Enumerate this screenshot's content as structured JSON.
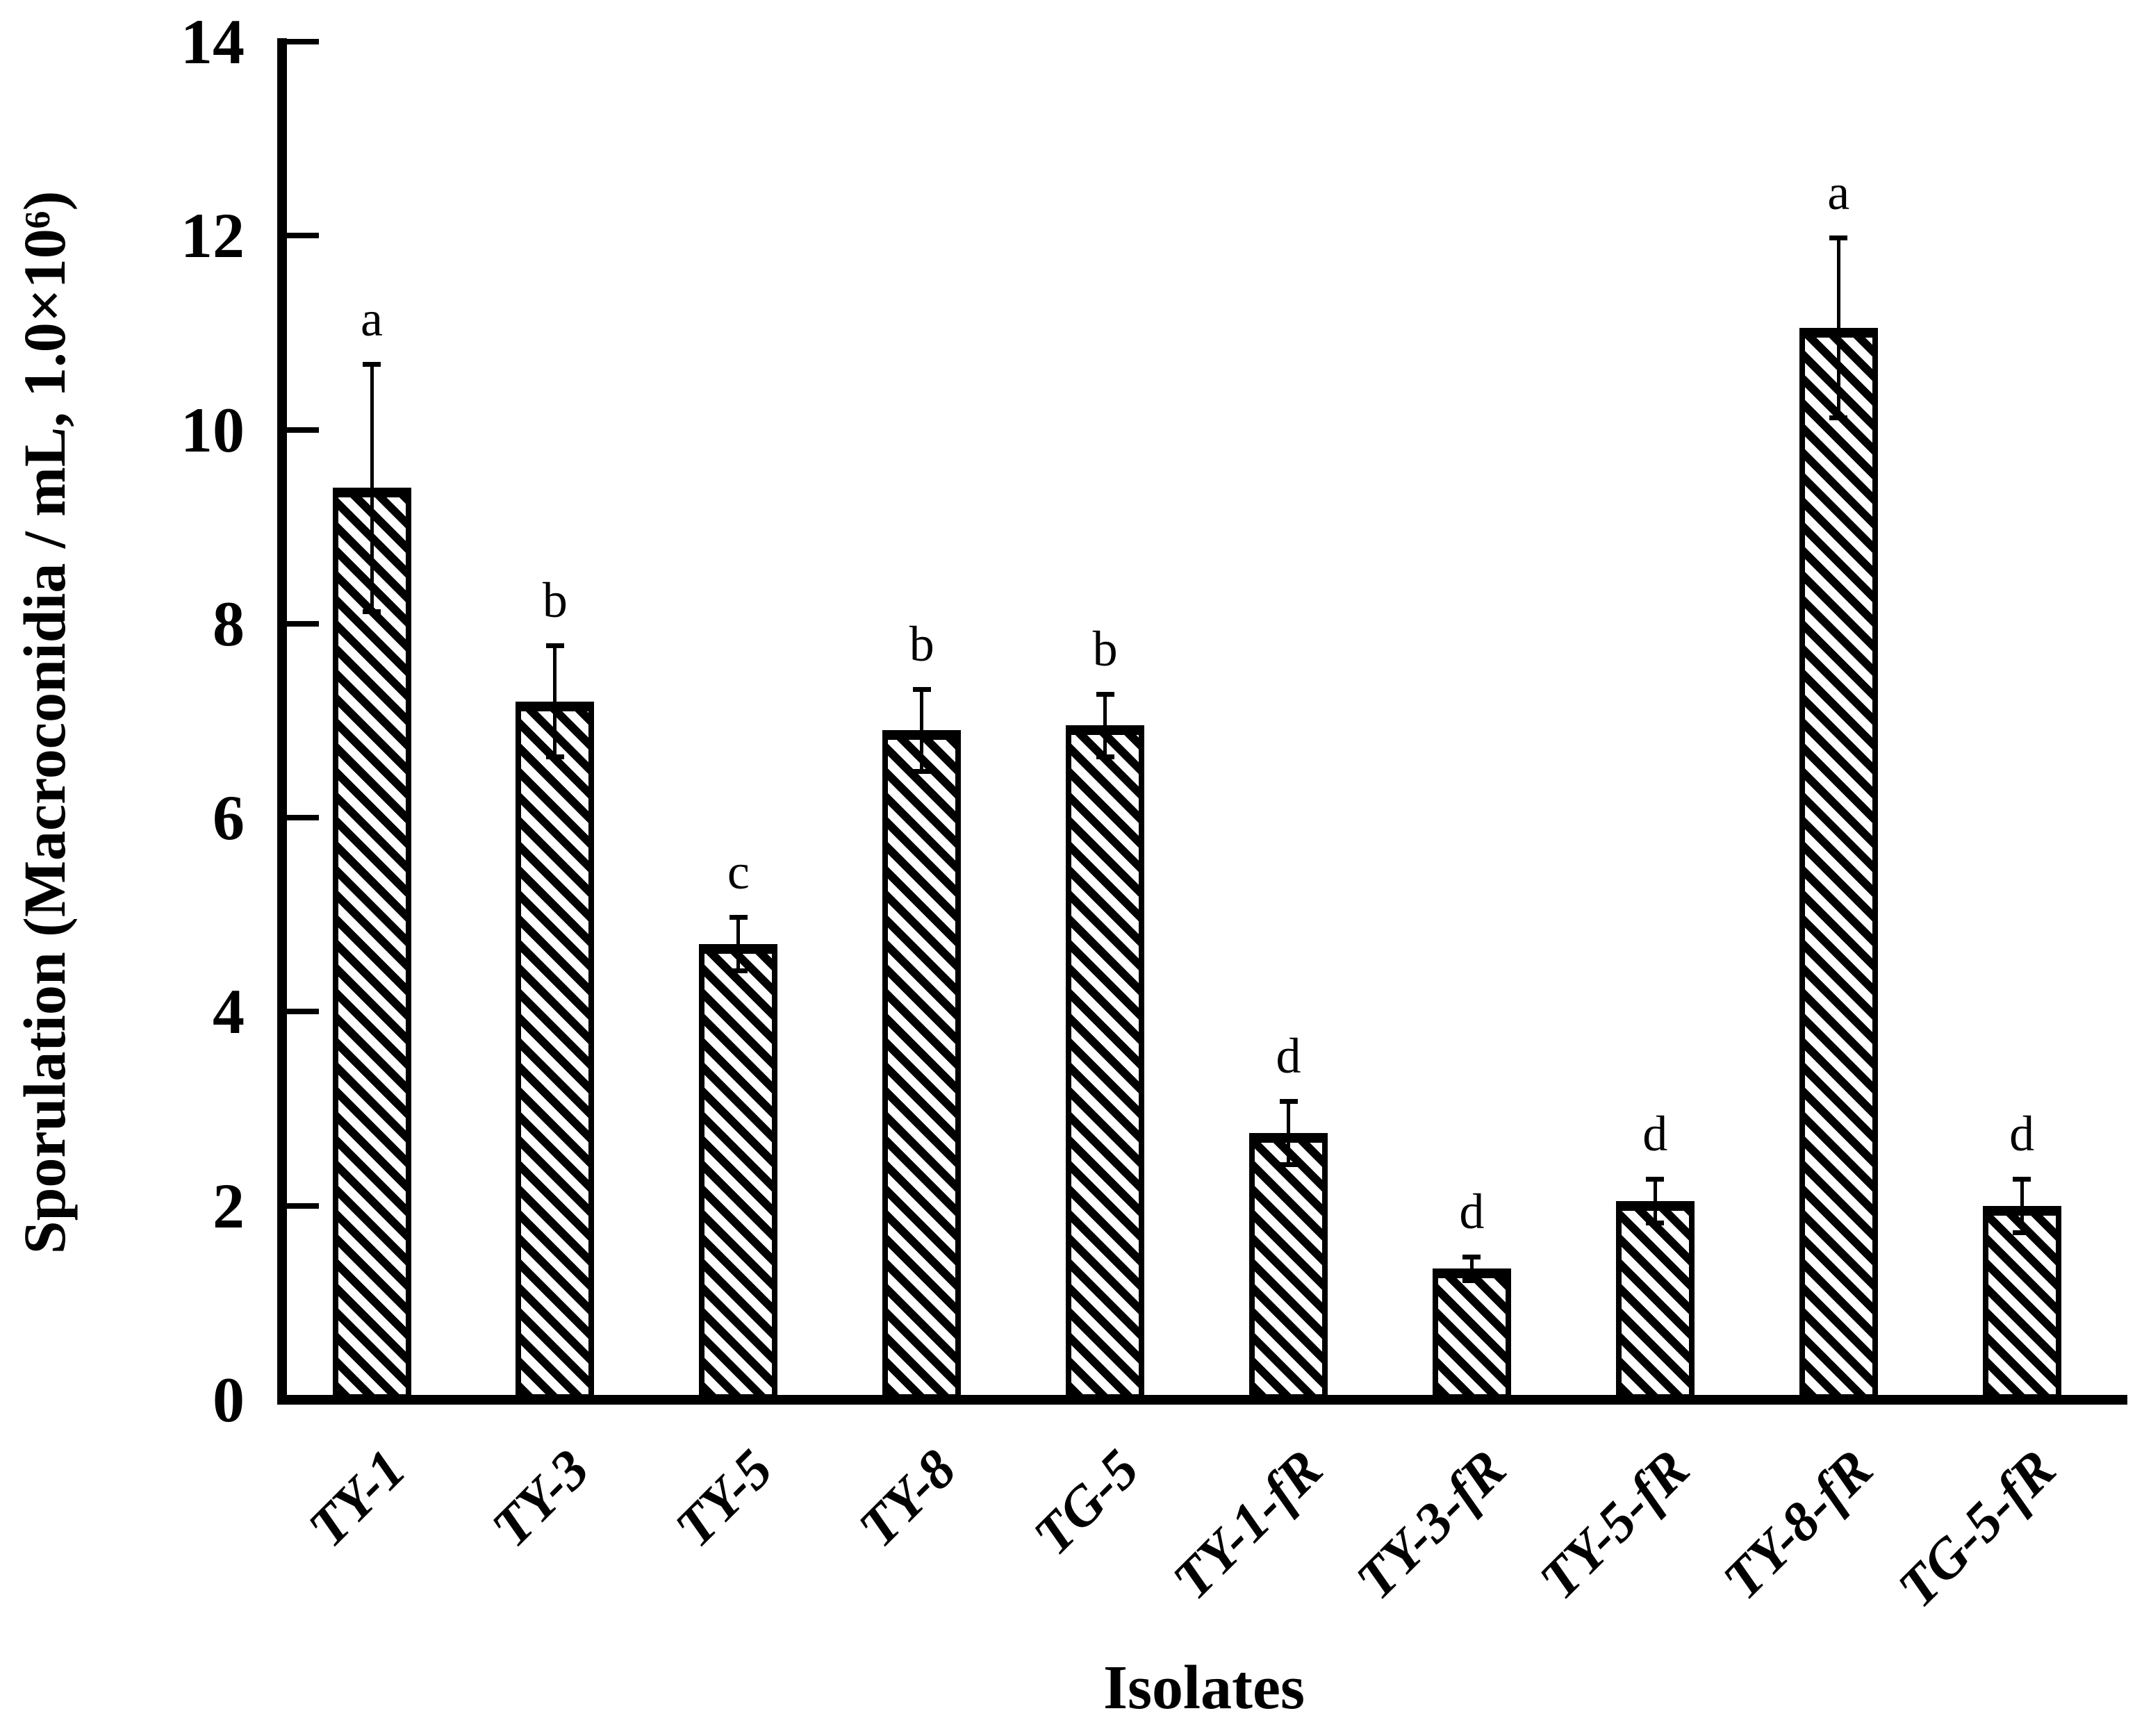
{
  "chart_data": {
    "type": "bar",
    "title": "",
    "xlabel": "Isolates",
    "ylabel": "Sporulation (Macroconidia / mL, 1.0×10⁶)",
    "ylim": [
      0,
      14
    ],
    "yticks": [
      0,
      2,
      4,
      6,
      8,
      10,
      12,
      14
    ],
    "grid": false,
    "legend_position": "none",
    "bar_fill": "#ffffff",
    "bar_hatch": "diagonal-backslash",
    "line_color": "#000000",
    "background_color": "#ffffff",
    "categories": [
      "TY-1",
      "TY-3",
      "TY-5",
      "TY-8",
      "TG-5",
      "TY-1-fR",
      "TY-3-fR",
      "TY-5-fR",
      "TY-8-fR",
      "TG-5-fR"
    ],
    "values": [
      9.4,
      7.2,
      4.7,
      6.9,
      6.95,
      2.75,
      1.35,
      2.05,
      11.05,
      2.0
    ],
    "error_upper": [
      1.3,
      0.6,
      0.3,
      0.45,
      0.35,
      0.35,
      0.15,
      0.25,
      0.95,
      0.3
    ],
    "error_symmetric": true,
    "sig_letters": [
      "a",
      "b",
      "c",
      "b",
      "b",
      "d",
      "d",
      "d",
      "a",
      "d"
    ]
  }
}
